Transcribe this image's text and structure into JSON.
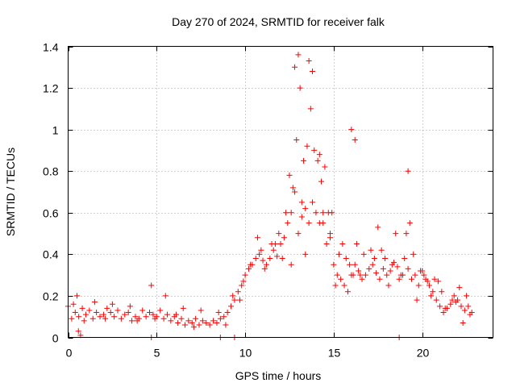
{
  "chart_data": {
    "type": "scatter",
    "title": "Day 270 of 2024, SRMTID for receiver falk",
    "xlabel": "GPS time / hours",
    "ylabel": "SRMTID / TECUs",
    "xlim": [
      0,
      24
    ],
    "ylim": [
      0,
      1.4
    ],
    "xticks": [
      0,
      5,
      10,
      15,
      20
    ],
    "xtick_labels": [
      "0",
      "5",
      "10",
      "15",
      "20"
    ],
    "yticks": [
      0,
      0.2,
      0.4,
      0.6,
      0.8,
      1,
      1.2,
      1.4
    ],
    "ytick_labels": [
      "0",
      "0.2",
      "0.4",
      "0.6",
      "0.8",
      "1",
      "1.2",
      "1.4"
    ],
    "grid": true,
    "marker": "plus",
    "series": [
      {
        "name": "SRMTID",
        "color": "#ff0000",
        "x": [
          0.0,
          0.2,
          0.4,
          0.6,
          0.8,
          1.0,
          1.2,
          1.4,
          1.6,
          1.8,
          2.0,
          2.2,
          2.4,
          2.6,
          2.8,
          3.0,
          3.2,
          3.4,
          3.6,
          3.8,
          4.0,
          4.2,
          4.4,
          4.6,
          4.8,
          5.0,
          5.2,
          5.4,
          5.6,
          5.8,
          6.0,
          6.2,
          6.4,
          6.6,
          6.8,
          7.0,
          7.2,
          7.4,
          7.6,
          7.8,
          8.0,
          8.2,
          8.4,
          8.6,
          8.8,
          9.0,
          9.2,
          9.4,
          9.6,
          9.8,
          10.0,
          10.2,
          10.4,
          10.6,
          10.8,
          11.0,
          11.2,
          11.4,
          11.6,
          11.8,
          12.0,
          12.2,
          12.4,
          12.6,
          12.8,
          13.0,
          13.2,
          13.4,
          13.6,
          13.8,
          14.0,
          14.2,
          14.4,
          14.6,
          14.8,
          15.0,
          15.2,
          15.4,
          15.6,
          15.8,
          16.0,
          16.2,
          16.4,
          16.6,
          16.8,
          17.0,
          17.2,
          17.4,
          17.6,
          17.8,
          18.0,
          18.2,
          18.4,
          18.6,
          18.8,
          19.0,
          19.2,
          19.4,
          19.6,
          19.8,
          20.0,
          20.2,
          20.4,
          20.6,
          20.8,
          21.0,
          21.2,
          21.4,
          21.6,
          21.8,
          22.0,
          22.2,
          22.4,
          22.6,
          22.8,
          0.5,
          1.5,
          2.5,
          3.5,
          4.7,
          5.5,
          6.5,
          7.5,
          8.5,
          9.7,
          10.3,
          10.9,
          11.5,
          12.3,
          12.7,
          12.9,
          13.1,
          13.3,
          13.7,
          13.9,
          14.3,
          14.5,
          14.9,
          15.3,
          15.9,
          16.1,
          16.3,
          16.7,
          17.3,
          17.7,
          18.3,
          18.9,
          19.1,
          19.3,
          19.5,
          19.9,
          20.3,
          20.7,
          21.1,
          21.7,
          22.1,
          22.5,
          12.5,
          13.5,
          14.1,
          14.7,
          15.5,
          12.1,
          13.2,
          16.0,
          16.2,
          19.2,
          13.0,
          13.6,
          13.8,
          12.8,
          14.2,
          11.7,
          10.7,
          17.5,
          18.5,
          0.3,
          0.9,
          2.1,
          3.9,
          4.9,
          6.1,
          7.1,
          8.9,
          9.3,
          9.9,
          11.1,
          11.9,
          12.6,
          13.4,
          14.4,
          14.8,
          15.1,
          15.7,
          16.5,
          17.1,
          17.9,
          18.1,
          18.7,
          19.7,
          20.1,
          20.5,
          20.9,
          21.3,
          21.9,
          22.3,
          22.7,
          0.58,
          0.7,
          4.7,
          8.6,
          9.4,
          18.7
        ],
        "y": [
          0.15,
          0.09,
          0.12,
          0.1,
          0.14,
          0.11,
          0.13,
          0.09,
          0.12,
          0.1,
          0.11,
          0.14,
          0.12,
          0.1,
          0.13,
          0.09,
          0.11,
          0.12,
          0.08,
          0.1,
          0.09,
          0.13,
          0.1,
          0.12,
          0.11,
          0.1,
          0.13,
          0.09,
          0.11,
          0.08,
          0.1,
          0.07,
          0.09,
          0.06,
          0.08,
          0.07,
          0.09,
          0.06,
          0.08,
          0.07,
          0.06,
          0.08,
          0.07,
          0.09,
          0.1,
          0.12,
          0.15,
          0.18,
          0.22,
          0.25,
          0.3,
          0.33,
          0.35,
          0.38,
          0.4,
          0.37,
          0.35,
          0.38,
          0.42,
          0.39,
          0.45,
          0.48,
          0.55,
          0.6,
          0.7,
          0.5,
          0.58,
          0.62,
          0.55,
          0.65,
          0.6,
          0.55,
          0.6,
          0.45,
          0.5,
          0.35,
          0.3,
          0.28,
          0.25,
          0.22,
          0.3,
          0.35,
          0.32,
          0.28,
          0.3,
          0.33,
          0.35,
          0.31,
          0.28,
          0.33,
          0.3,
          0.32,
          0.36,
          0.34,
          0.3,
          0.38,
          0.33,
          0.28,
          0.3,
          0.25,
          0.32,
          0.28,
          0.25,
          0.22,
          0.18,
          0.15,
          0.12,
          0.14,
          0.16,
          0.2,
          0.18,
          0.15,
          0.13,
          0.15,
          0.12,
          0.2,
          0.17,
          0.16,
          0.15,
          0.25,
          0.2,
          0.14,
          0.13,
          0.12,
          0.18,
          0.35,
          0.42,
          0.45,
          0.6,
          0.72,
          0.95,
          1.2,
          0.85,
          1.1,
          0.9,
          0.75,
          0.82,
          0.6,
          0.4,
          0.35,
          0.3,
          0.45,
          0.4,
          0.38,
          0.42,
          0.35,
          0.3,
          0.5,
          0.55,
          0.4,
          0.32,
          0.27,
          0.28,
          0.22,
          0.18,
          0.24,
          0.2,
          0.78,
          0.92,
          0.85,
          0.6,
          0.45,
          0.38,
          0.65,
          1.0,
          0.95,
          0.8,
          1.36,
          1.33,
          1.28,
          1.3,
          0.88,
          0.45,
          0.48,
          0.53,
          0.5,
          0.16,
          0.08,
          0.09,
          0.08,
          0.09,
          0.11,
          0.05,
          0.06,
          0.2,
          0.27,
          0.33,
          0.5,
          0.35,
          0.4,
          0.55,
          0.48,
          0.25,
          0.38,
          0.3,
          0.42,
          0.38,
          0.25,
          0.28,
          0.18,
          0.3,
          0.2,
          0.27,
          0.14,
          0.17,
          0.07,
          0.11,
          0.03,
          0.01,
          0.0,
          0.0,
          0.0,
          0.0
        ]
      }
    ]
  }
}
